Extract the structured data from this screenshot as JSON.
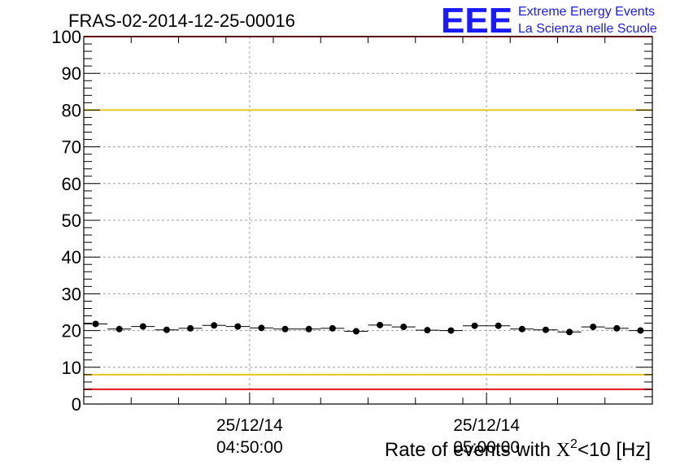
{
  "chart_data": {
    "type": "scatter",
    "title": "FRAS-02-2014-12-25-00016",
    "xlabel_prefix": "Rate of events with ",
    "xlabel_symbol": "X",
    "xlabel_sup": "2",
    "xlabel_suffix": "<10 [Hz]",
    "ylim": [
      0,
      100
    ],
    "y_ticks": [
      0,
      10,
      20,
      30,
      40,
      50,
      60,
      70,
      80,
      90,
      100
    ],
    "y_ticks_labels": [
      "0",
      "10",
      "20",
      "30",
      "40",
      "50",
      "60",
      "70",
      "80",
      "90",
      "100"
    ],
    "grid": true,
    "x_bin_count": 24,
    "x_tick_labels": [
      {
        "bin": 7.0,
        "date": "25/12/14",
        "time": "04:50:00"
      },
      {
        "bin": 17.0,
        "date": "25/12/14",
        "time": "05:00:00"
      }
    ],
    "values": [
      21.8,
      20.4,
      21.1,
      20.2,
      20.6,
      21.4,
      21.1,
      20.7,
      20.4,
      20.4,
      20.6,
      19.8,
      21.5,
      21.0,
      20.1,
      20.0,
      21.3,
      21.3,
      20.4,
      20.2,
      19.6,
      21.0,
      20.6,
      20.0
    ],
    "reference_lines": [
      {
        "value": 100,
        "color": "#e8131a"
      },
      {
        "value": 80,
        "color": "#e7c91b"
      },
      {
        "value": 8,
        "color": "#e7c91b"
      },
      {
        "value": 4,
        "color": "#e8131a"
      }
    ],
    "point_color": "#000000"
  },
  "logo": {
    "letters": "EEE",
    "line1": "Extreme Energy Events",
    "line2": "La Scienza nelle Scuole",
    "color": "#1a1aff"
  }
}
